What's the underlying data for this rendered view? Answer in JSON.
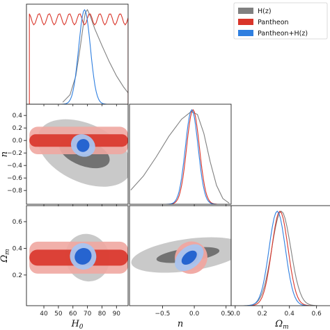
{
  "chart_data": {
    "type": "triangle-corner",
    "parameters": [
      {
        "key": "H0",
        "label": "H",
        "label_sub": "0",
        "range": [
          28,
          98
        ],
        "ticks": [
          40,
          50,
          60,
          70,
          80,
          90
        ],
        "tick_labels": [
          "40",
          "50",
          "60",
          "70",
          "80",
          "90"
        ]
      },
      {
        "key": "n",
        "label": "n",
        "label_sub": "",
        "range": [
          -1.02,
          0.58
        ],
        "ticks": [
          -0.5,
          0.0,
          0.5
        ],
        "tick_labels": [
          "−0.5",
          "0.0",
          "0.5"
        ],
        "y_ticks": [
          -0.8,
          -0.6,
          -0.4,
          -0.2,
          0.0,
          0.2,
          0.4
        ],
        "y_tick_labels": [
          "−0.8",
          "−0.6",
          "−0.4",
          "−0.2",
          "0.0",
          "0.2",
          "0.4"
        ]
      },
      {
        "key": "Om",
        "label": "Ω",
        "label_sub": "m",
        "range": [
          -0.03,
          0.72
        ],
        "ticks": [
          0.0,
          0.2,
          0.4,
          0.6
        ],
        "tick_labels": [
          "0.0",
          "0.2",
          "0.4",
          "0.6"
        ],
        "y_ticks": [
          0.2,
          0.4,
          0.6
        ],
        "y_tick_labels": [
          "0.2",
          "0.4",
          "0.6"
        ]
      }
    ],
    "legend": {
      "placement": "top-right",
      "entries": [
        {
          "label": "H(z)",
          "color": "#808080"
        },
        {
          "label": "Pantheon",
          "color": "#d9352a"
        },
        {
          "label": "Pantheon+H(z)",
          "color": "#2f7fe0"
        }
      ]
    },
    "series": [
      {
        "name": "H(z)",
        "line_color": "#808080",
        "fill_inner": "#6e6e6e",
        "fill_outer": "#c6c6c6",
        "marginals": {
          "H0": {
            "mean": 70,
            "sd": 5,
            "curve": [
              [
                53,
                0.02
              ],
              [
                58,
                0.1
              ],
              [
                62,
                0.3
              ],
              [
                65,
                0.6
              ],
              [
                67,
                0.82
              ],
              [
                68.5,
                0.97
              ],
              [
                70,
                1.0
              ],
              [
                72,
                0.93
              ],
              [
                75,
                0.8
              ],
              [
                80,
                0.62
              ],
              [
                85,
                0.45
              ],
              [
                90,
                0.3
              ],
              [
                95,
                0.18
              ],
              [
                98,
                0.12
              ]
            ]
          },
          "n": {
            "curve": [
              [
                -1.0,
                0.15
              ],
              [
                -0.8,
                0.3
              ],
              [
                -0.6,
                0.5
              ],
              [
                -0.4,
                0.72
              ],
              [
                -0.2,
                0.9
              ],
              [
                -0.05,
                0.98
              ],
              [
                0.05,
                0.95
              ],
              [
                0.15,
                0.75
              ],
              [
                0.25,
                0.45
              ],
              [
                0.35,
                0.2
              ],
              [
                0.45,
                0.06
              ],
              [
                0.55,
                0.01
              ]
            ]
          },
          "Om": {
            "mean": 0.34,
            "sd": 0.07
          }
        },
        "contours": {
          "H0_n": {
            "center": [
              68,
              -0.2
            ],
            "inner": {
              "rx": 9,
              "ry": 0.42,
              "angle": -70
            },
            "outer": {
              "rx": 20,
              "ry": 0.8,
              "angle": -65
            }
          },
          "H0_Om": {
            "center": [
              70,
              0.33
            ],
            "inner": {
              "rx": 6,
              "ry": 0.07,
              "angle": -30
            },
            "outer": {
              "rx": 15,
              "ry": 0.18,
              "angle": -20
            }
          },
          "n_Om": {
            "center": [
              -0.1,
              0.35
            ],
            "inner": {
              "rx": 0.5,
              "ry": 0.05,
              "angle": -8
            },
            "outer": {
              "rx": 0.9,
              "ry": 0.12,
              "angle": -8
            }
          }
        }
      },
      {
        "name": "Pantheon",
        "line_color": "#d9352a",
        "fill_inner": "#d9352a",
        "fill_outer": "#f0a7a1",
        "marginals": {
          "H0": {
            "flat": true,
            "range": [
              30,
              98
            ],
            "level": 0.9
          },
          "n": {
            "mean": -0.02,
            "sd": 0.1
          },
          "Om": {
            "mean": 0.33,
            "sd": 0.06
          }
        },
        "contours": {
          "H0_n": {
            "center": [
              64,
              0.0
            ],
            "inner": {
              "halfwidth": 34,
              "halfheight": 0.1
            },
            "outer": {
              "halfwidth": 34,
              "halfheight": 0.22
            }
          },
          "H0_Om": {
            "center": [
              64,
              0.33
            ],
            "inner": {
              "halfwidth": 34,
              "halfheight": 0.06
            },
            "outer": {
              "halfwidth": 34,
              "halfheight": 0.12
            }
          },
          "n_Om": {
            "center": [
              -0.05,
              0.33
            ],
            "inner": {
              "rx": 0.13,
              "ry": 0.05,
              "angle": -40
            },
            "outer": {
              "rx": 0.26,
              "ry": 0.12,
              "angle": -40
            }
          }
        }
      },
      {
        "name": "Pantheon+H(z)",
        "line_color": "#2f7fe0",
        "fill_inner": "#1f5fcf",
        "fill_outer": "#a8c4f0",
        "marginals": {
          "H0": {
            "mean": 68,
            "sd": 4
          },
          "n": {
            "mean": -0.04,
            "sd": 0.1
          },
          "Om": {
            "mean": 0.31,
            "sd": 0.06
          }
        },
        "contours": {
          "H0_n": {
            "center": [
              67,
              -0.08
            ],
            "inner": {
              "rx": 4.5,
              "ry": 0.1,
              "angle": -60
            },
            "outer": {
              "rx": 7.5,
              "ry": 0.2,
              "angle": -60
            }
          },
          "H0_Om": {
            "center": [
              67,
              0.34
            ],
            "inner": {
              "rx": 6,
              "ry": 0.06,
              "angle": -40
            },
            "outer": {
              "rx": 9,
              "ry": 0.1,
              "angle": -40
            }
          },
          "n_Om": {
            "center": [
              -0.08,
              0.33
            ],
            "inner": {
              "rx": 0.14,
              "ry": 0.04,
              "angle": -40
            },
            "outer": {
              "rx": 0.26,
              "ry": 0.08,
              "angle": -40
            }
          }
        }
      }
    ]
  }
}
